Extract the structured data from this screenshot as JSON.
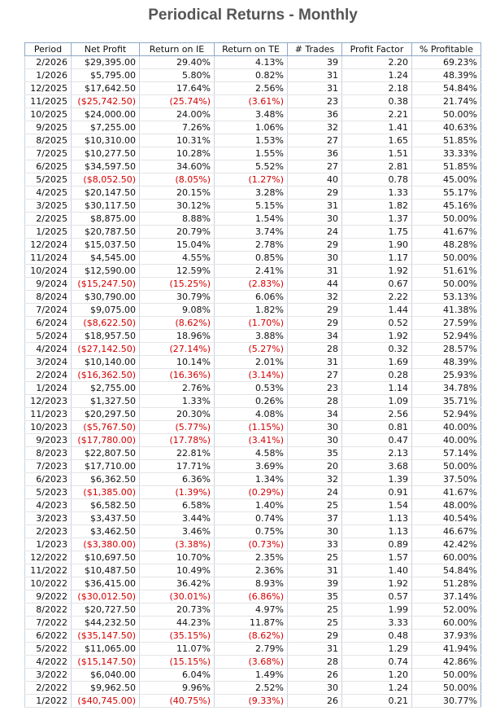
{
  "header": {
    "title": "Periodical Returns - Monthly"
  },
  "table": {
    "columns": [
      "Period",
      "Net Profit",
      "Return on IE",
      "Return on TE",
      "# Trades",
      "Profit Factor",
      "% Profitable"
    ],
    "rows": [
      [
        "2/2026",
        "$29,395.00",
        "29.40%",
        "4.13%",
        "39",
        "2.20",
        "69.23%"
      ],
      [
        "1/2026",
        "$5,795.00",
        "5.80%",
        "0.82%",
        "31",
        "1.24",
        "48.39%"
      ],
      [
        "12/2025",
        "$17,642.50",
        "17.64%",
        "2.56%",
        "31",
        "2.18",
        "54.84%"
      ],
      [
        "11/2025",
        "($25,742.50)",
        "(25.74%)",
        "(3.61%)",
        "23",
        "0.38",
        "21.74%"
      ],
      [
        "10/2025",
        "$24,000.00",
        "24.00%",
        "3.48%",
        "36",
        "2.21",
        "50.00%"
      ],
      [
        "9/2025",
        "$7,255.00",
        "7.26%",
        "1.06%",
        "32",
        "1.41",
        "40.63%"
      ],
      [
        "8/2025",
        "$10,310.00",
        "10.31%",
        "1.53%",
        "27",
        "1.65",
        "51.85%"
      ],
      [
        "7/2025",
        "$10,277.50",
        "10.28%",
        "1.55%",
        "36",
        "1.51",
        "33.33%"
      ],
      [
        "6/2025",
        "$34,597.50",
        "34.60%",
        "5.52%",
        "27",
        "2.81",
        "51.85%"
      ],
      [
        "5/2025",
        "($8,052.50)",
        "(8.05%)",
        "(1.27%)",
        "40",
        "0.78",
        "45.00%"
      ],
      [
        "4/2025",
        "$20,147.50",
        "20.15%",
        "3.28%",
        "29",
        "1.33",
        "55.17%"
      ],
      [
        "3/2025",
        "$30,117.50",
        "30.12%",
        "5.15%",
        "31",
        "1.82",
        "45.16%"
      ],
      [
        "2/2025",
        "$8,875.00",
        "8.88%",
        "1.54%",
        "30",
        "1.37",
        "50.00%"
      ],
      [
        "1/2025",
        "$20,787.50",
        "20.79%",
        "3.74%",
        "24",
        "1.75",
        "41.67%"
      ],
      [
        "12/2024",
        "$15,037.50",
        "15.04%",
        "2.78%",
        "29",
        "1.90",
        "48.28%"
      ],
      [
        "11/2024",
        "$4,545.00",
        "4.55%",
        "0.85%",
        "30",
        "1.17",
        "50.00%"
      ],
      [
        "10/2024",
        "$12,590.00",
        "12.59%",
        "2.41%",
        "31",
        "1.92",
        "51.61%"
      ],
      [
        "9/2024",
        "($15,247.50)",
        "(15.25%)",
        "(2.83%)",
        "44",
        "0.67",
        "50.00%"
      ],
      [
        "8/2024",
        "$30,790.00",
        "30.79%",
        "6.06%",
        "32",
        "2.22",
        "53.13%"
      ],
      [
        "7/2024",
        "$9,075.00",
        "9.08%",
        "1.82%",
        "29",
        "1.44",
        "41.38%"
      ],
      [
        "6/2024",
        "($8,622.50)",
        "(8.62%)",
        "(1.70%)",
        "29",
        "0.52",
        "27.59%"
      ],
      [
        "5/2024",
        "$18,957.50",
        "18.96%",
        "3.88%",
        "34",
        "1.92",
        "52.94%"
      ],
      [
        "4/2024",
        "($27,142.50)",
        "(27.14%)",
        "(5.27%)",
        "28",
        "0.32",
        "28.57%"
      ],
      [
        "3/2024",
        "$10,140.00",
        "10.14%",
        "2.01%",
        "31",
        "1.69",
        "48.39%"
      ],
      [
        "2/2024",
        "($16,362.50)",
        "(16.36%)",
        "(3.14%)",
        "27",
        "0.28",
        "25.93%"
      ],
      [
        "1/2024",
        "$2,755.00",
        "2.76%",
        "0.53%",
        "23",
        "1.14",
        "34.78%"
      ],
      [
        "12/2023",
        "$1,327.50",
        "1.33%",
        "0.26%",
        "28",
        "1.09",
        "35.71%"
      ],
      [
        "11/2023",
        "$20,297.50",
        "20.30%",
        "4.08%",
        "34",
        "2.56",
        "52.94%"
      ],
      [
        "10/2023",
        "($5,767.50)",
        "(5.77%)",
        "(1.15%)",
        "30",
        "0.81",
        "40.00%"
      ],
      [
        "9/2023",
        "($17,780.00)",
        "(17.78%)",
        "(3.41%)",
        "30",
        "0.47",
        "40.00%"
      ],
      [
        "8/2023",
        "$22,807.50",
        "22.81%",
        "4.58%",
        "35",
        "2.13",
        "57.14%"
      ],
      [
        "7/2023",
        "$17,710.00",
        "17.71%",
        "3.69%",
        "20",
        "3.68",
        "50.00%"
      ],
      [
        "6/2023",
        "$6,362.50",
        "6.36%",
        "1.34%",
        "32",
        "1.39",
        "37.50%"
      ],
      [
        "5/2023",
        "($1,385.00)",
        "(1.39%)",
        "(0.29%)",
        "24",
        "0.91",
        "41.67%"
      ],
      [
        "4/2023",
        "$6,582.50",
        "6.58%",
        "1.40%",
        "25",
        "1.54",
        "48.00%"
      ],
      [
        "3/2023",
        "$3,437.50",
        "3.44%",
        "0.74%",
        "37",
        "1.13",
        "40.54%"
      ],
      [
        "2/2023",
        "$3,462.50",
        "3.46%",
        "0.75%",
        "30",
        "1.13",
        "46.67%"
      ],
      [
        "1/2023",
        "($3,380.00)",
        "(3.38%)",
        "(0.73%)",
        "33",
        "0.89",
        "42.42%"
      ],
      [
        "12/2022",
        "$10,697.50",
        "10.70%",
        "2.35%",
        "25",
        "1.57",
        "60.00%"
      ],
      [
        "11/2022",
        "$10,487.50",
        "10.49%",
        "2.36%",
        "31",
        "1.40",
        "54.84%"
      ],
      [
        "10/2022",
        "$36,415.00",
        "36.42%",
        "8.93%",
        "39",
        "1.92",
        "51.28%"
      ],
      [
        "9/2022",
        "($30,012.50)",
        "(30.01%)",
        "(6.86%)",
        "35",
        "0.57",
        "37.14%"
      ],
      [
        "8/2022",
        "$20,727.50",
        "20.73%",
        "4.97%",
        "25",
        "1.99",
        "52.00%"
      ],
      [
        "7/2022",
        "$44,232.50",
        "44.23%",
        "11.87%",
        "25",
        "3.33",
        "60.00%"
      ],
      [
        "6/2022",
        "($35,147.50)",
        "(35.15%)",
        "(8.62%)",
        "29",
        "0.48",
        "37.93%"
      ],
      [
        "5/2022",
        "$11,065.00",
        "11.07%",
        "2.79%",
        "31",
        "1.29",
        "41.94%"
      ],
      [
        "4/2022",
        "($15,147.50)",
        "(15.15%)",
        "(3.68%)",
        "28",
        "0.74",
        "42.86%"
      ],
      [
        "3/2022",
        "$6,040.00",
        "6.04%",
        "1.49%",
        "26",
        "1.20",
        "50.00%"
      ],
      [
        "2/2022",
        "$9,962.50",
        "9.96%",
        "2.52%",
        "30",
        "1.24",
        "50.00%"
      ],
      [
        "1/2022",
        "($40,745.00)",
        "(40.75%)",
        "(9.33%)",
        "26",
        "0.21",
        "30.77%"
      ]
    ]
  }
}
